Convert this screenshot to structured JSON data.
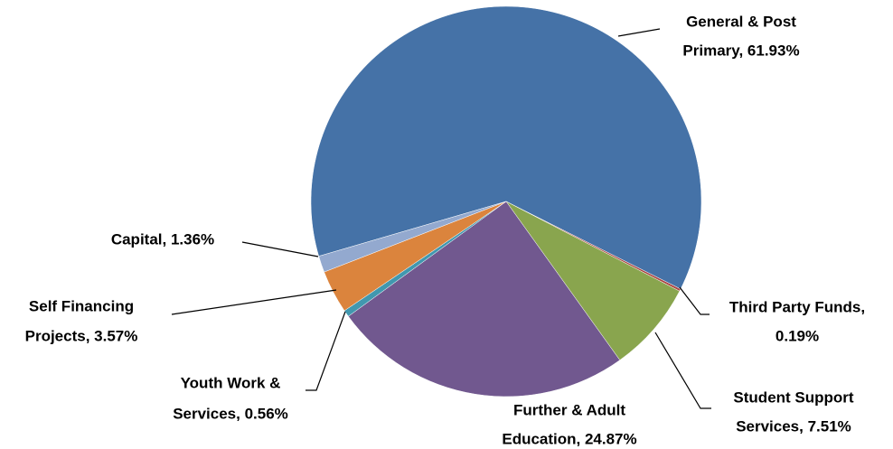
{
  "chart_data": {
    "type": "pie",
    "labels": [
      [
        "General & Post",
        "Primary, 61.93%"
      ],
      [
        "Third Party Funds,",
        "0.19%"
      ],
      [
        "Student Support",
        "Services, 7.51%"
      ],
      [
        "Further & Adult",
        "Education, 24.87%"
      ],
      [
        "Youth Work &",
        "Services, 0.56%"
      ],
      [
        "Self Financing",
        "Projects, 3.57%"
      ],
      [
        "Capital, 1.36%"
      ]
    ],
    "values": [
      61.93,
      0.19,
      7.51,
      24.87,
      0.56,
      3.57,
      1.36
    ],
    "colors": [
      "#4572a7",
      "#aa4643",
      "#89a54e",
      "#71588f",
      "#4198af",
      "#db843d",
      "#93a9cf"
    ]
  }
}
